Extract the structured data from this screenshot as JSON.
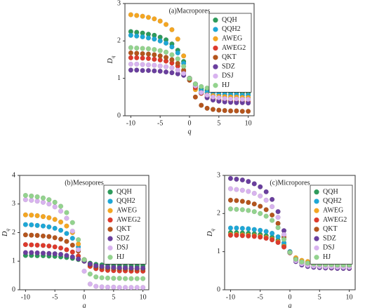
{
  "chart_data": [
    {
      "type": "scatter",
      "title": "(a)Macropores",
      "x_label": "q",
      "y_label": "D",
      "y_label_subscript": "q",
      "x": [
        -10,
        -9,
        -8,
        -7,
        -6,
        -5,
        -4,
        -3,
        -2,
        -1,
        0,
        1,
        2,
        3,
        4,
        5,
        6,
        7,
        8,
        9,
        10
      ],
      "xlim": [
        -11,
        11
      ],
      "xticks": [
        -10,
        -5,
        0,
        5,
        10
      ],
      "ylim": [
        0,
        3
      ],
      "yticks": [
        0,
        1,
        2,
        3
      ],
      "legend": "upper right",
      "series": [
        {
          "name": "QQH",
          "color": "#2e9b5c",
          "values": [
            2.25,
            2.23,
            2.21,
            2.18,
            2.15,
            2.1,
            2.03,
            1.92,
            1.75,
            1.45,
            1.0,
            0.8,
            0.72,
            0.68,
            0.66,
            0.64,
            0.63,
            0.62,
            0.62,
            0.61,
            0.61
          ]
        },
        {
          "name": "QQH2",
          "color": "#1ea7d6",
          "values": [
            2.15,
            2.13,
            2.11,
            2.08,
            2.05,
            2.0,
            1.94,
            1.84,
            1.68,
            1.4,
            1.0,
            0.78,
            0.68,
            0.63,
            0.6,
            0.58,
            0.57,
            0.56,
            0.56,
            0.55,
            0.55
          ]
        },
        {
          "name": "AWEG",
          "color": "#f4a622",
          "values": [
            2.7,
            2.68,
            2.66,
            2.63,
            2.59,
            2.53,
            2.44,
            2.3,
            2.05,
            1.6,
            1.0,
            0.7,
            0.6,
            0.56,
            0.54,
            0.52,
            0.51,
            0.5,
            0.5,
            0.49,
            0.49
          ]
        },
        {
          "name": "AWEG2",
          "color": "#dd3a2c",
          "values": [
            1.55,
            1.55,
            1.54,
            1.53,
            1.51,
            1.49,
            1.46,
            1.41,
            1.33,
            1.2,
            1.0,
            0.75,
            0.6,
            0.5,
            0.45,
            0.42,
            0.4,
            0.39,
            0.38,
            0.38,
            0.37
          ]
        },
        {
          "name": "QKT",
          "color": "#b4551d",
          "values": [
            1.68,
            1.67,
            1.66,
            1.65,
            1.63,
            1.6,
            1.56,
            1.5,
            1.4,
            1.22,
            0.95,
            0.5,
            0.28,
            0.2,
            0.17,
            0.15,
            0.14,
            0.13,
            0.13,
            0.12,
            0.12
          ]
        },
        {
          "name": "SDZ",
          "color": "#6a3f9e",
          "values": [
            1.22,
            1.22,
            1.21,
            1.21,
            1.2,
            1.19,
            1.17,
            1.15,
            1.12,
            1.08,
            1.0,
            0.85,
            0.62,
            0.48,
            0.42,
            0.39,
            0.37,
            0.36,
            0.35,
            0.35,
            0.34
          ]
        },
        {
          "name": "DSJ",
          "color": "#d8b3ef",
          "values": [
            1.38,
            1.38,
            1.37,
            1.36,
            1.35,
            1.33,
            1.31,
            1.28,
            1.22,
            1.13,
            1.0,
            0.8,
            0.62,
            0.55,
            0.5,
            0.48,
            0.46,
            0.45,
            0.45,
            0.44,
            0.44
          ]
        },
        {
          "name": "HJ",
          "color": "#93d38e",
          "values": [
            1.82,
            1.81,
            1.8,
            1.79,
            1.77,
            1.74,
            1.7,
            1.63,
            1.52,
            1.32,
            1.0,
            0.85,
            0.78,
            0.74,
            0.71,
            0.7,
            0.69,
            0.68,
            0.68,
            0.67,
            0.67
          ]
        }
      ]
    },
    {
      "type": "scatter",
      "title": "(b)Mesopores",
      "x_label": "q",
      "y_label": "D",
      "y_label_subscript": "q",
      "x": [
        -10,
        -9,
        -8,
        -7,
        -6,
        -5,
        -4,
        -3,
        -2,
        -1,
        0,
        1,
        2,
        3,
        4,
        5,
        6,
        7,
        8,
        9,
        10
      ],
      "xlim": [
        -11,
        11
      ],
      "xticks": [
        -10,
        -5,
        0,
        5,
        10
      ],
      "ylim": [
        0,
        4
      ],
      "yticks": [
        0,
        1,
        2,
        3,
        4
      ],
      "legend": "upper right",
      "series": [
        {
          "name": "QQH",
          "color": "#2e9b5c",
          "values": [
            1.2,
            1.2,
            1.19,
            1.19,
            1.18,
            1.17,
            1.15,
            1.13,
            1.1,
            1.06,
            1.0,
            0.93,
            0.89,
            0.87,
            0.86,
            0.85,
            0.85,
            0.84,
            0.84,
            0.84,
            0.84
          ]
        },
        {
          "name": "QQH2",
          "color": "#1ea7d6",
          "values": [
            2.28,
            2.27,
            2.25,
            2.23,
            2.2,
            2.15,
            2.08,
            1.97,
            1.8,
            1.5,
            1.05,
            0.85,
            0.79,
            0.77,
            0.75,
            0.74,
            0.74,
            0.73,
            0.73,
            0.73,
            0.73
          ]
        },
        {
          "name": "AWEG",
          "color": "#f4a622",
          "values": [
            2.62,
            2.61,
            2.59,
            2.56,
            2.52,
            2.46,
            2.37,
            2.23,
            2.0,
            1.6,
            1.05,
            0.82,
            0.74,
            0.71,
            0.69,
            0.68,
            0.67,
            0.67,
            0.66,
            0.66,
            0.66
          ]
        },
        {
          "name": "AWEG2",
          "color": "#dd3a2c",
          "values": [
            1.58,
            1.57,
            1.56,
            1.55,
            1.53,
            1.5,
            1.46,
            1.4,
            1.32,
            1.18,
            1.0,
            0.82,
            0.74,
            0.7,
            0.68,
            0.67,
            0.66,
            0.66,
            0.65,
            0.65,
            0.65
          ]
        },
        {
          "name": "QKT",
          "color": "#b4551d",
          "values": [
            1.92,
            1.91,
            1.9,
            1.88,
            1.86,
            1.82,
            1.77,
            1.69,
            1.56,
            1.35,
            1.05,
            0.88,
            0.81,
            0.78,
            0.76,
            0.75,
            0.74,
            0.74,
            0.73,
            0.73,
            0.73
          ]
        },
        {
          "name": "SDZ",
          "color": "#6a3f9e",
          "values": [
            1.3,
            1.3,
            1.29,
            1.28,
            1.27,
            1.26,
            1.24,
            1.2,
            1.15,
            1.08,
            1.0,
            0.9,
            0.84,
            0.81,
            0.79,
            0.78,
            0.77,
            0.77,
            0.76,
            0.76,
            0.76
          ]
        },
        {
          "name": "DSJ",
          "color": "#d8b3ef",
          "values": [
            3.15,
            3.13,
            3.1,
            3.06,
            3.0,
            2.9,
            2.75,
            2.5,
            2.05,
            1.4,
            0.65,
            0.2,
            0.12,
            0.1,
            0.09,
            0.09,
            0.08,
            0.08,
            0.08,
            0.08,
            0.08
          ]
        },
        {
          "name": "HJ",
          "color": "#93d38e",
          "values": [
            3.3,
            3.28,
            3.25,
            3.21,
            3.15,
            3.06,
            2.92,
            2.7,
            2.35,
            1.75,
            1.05,
            0.55,
            0.45,
            0.42,
            0.41,
            0.4,
            0.4,
            0.39,
            0.39,
            0.39,
            0.39
          ]
        }
      ]
    },
    {
      "type": "scatter",
      "title": "(c)Micropores",
      "x_label": "q",
      "y_label": "D",
      "y_label_subscript": "q",
      "x": [
        -10,
        -9,
        -8,
        -7,
        -6,
        -5,
        -4,
        -3,
        -2,
        -1,
        0,
        1,
        2,
        3,
        4,
        5,
        6,
        7,
        8,
        9,
        10
      ],
      "xlim": [
        -11,
        11
      ],
      "xticks": [
        -10,
        -5,
        0,
        5,
        10
      ],
      "ylim": [
        0,
        3
      ],
      "yticks": [
        0,
        1,
        2,
        3
      ],
      "legend": "upper right",
      "series": [
        {
          "name": "QQH",
          "color": "#2e9b5c",
          "values": [
            1.5,
            1.5,
            1.49,
            1.48,
            1.47,
            1.45,
            1.42,
            1.38,
            1.3,
            1.17,
            0.98,
            0.82,
            0.74,
            0.7,
            0.68,
            0.67,
            0.66,
            0.66,
            0.65,
            0.65,
            0.65
          ]
        },
        {
          "name": "QQH2",
          "color": "#1ea7d6",
          "values": [
            1.62,
            1.62,
            1.61,
            1.6,
            1.58,
            1.56,
            1.53,
            1.48,
            1.39,
            1.23,
            1.0,
            0.82,
            0.73,
            0.69,
            0.67,
            0.66,
            0.65,
            0.65,
            0.64,
            0.64,
            0.64
          ]
        },
        {
          "name": "AWEG",
          "color": "#f4a622",
          "values": [
            1.45,
            1.45,
            1.44,
            1.43,
            1.42,
            1.4,
            1.37,
            1.33,
            1.26,
            1.14,
            0.98,
            0.84,
            0.77,
            0.74,
            0.72,
            0.71,
            0.7,
            0.7,
            0.69,
            0.69,
            0.69
          ]
        },
        {
          "name": "AWEG2",
          "color": "#dd3a2c",
          "values": [
            1.43,
            1.43,
            1.42,
            1.41,
            1.4,
            1.38,
            1.35,
            1.31,
            1.24,
            1.12,
            0.97,
            0.8,
            0.7,
            0.64,
            0.61,
            0.59,
            0.58,
            0.57,
            0.57,
            0.57,
            0.56
          ]
        },
        {
          "name": "QKT",
          "color": "#b4551d",
          "values": [
            2.35,
            2.34,
            2.32,
            2.29,
            2.25,
            2.19,
            2.1,
            1.96,
            1.74,
            1.38,
            0.98,
            0.78,
            0.7,
            0.66,
            0.64,
            0.63,
            0.62,
            0.62,
            0.61,
            0.61,
            0.61
          ]
        },
        {
          "name": "SDZ",
          "color": "#6a3f9e",
          "values": [
            2.92,
            2.9,
            2.88,
            2.84,
            2.78,
            2.7,
            2.57,
            2.37,
            2.05,
            1.55,
            0.98,
            0.74,
            0.65,
            0.61,
            0.59,
            0.58,
            0.57,
            0.57,
            0.56,
            0.56,
            0.56
          ]
        },
        {
          "name": "DSJ",
          "color": "#d8b3ef",
          "values": [
            2.65,
            2.63,
            2.61,
            2.58,
            2.53,
            2.46,
            2.35,
            2.18,
            1.9,
            1.45,
            0.98,
            0.76,
            0.68,
            0.64,
            0.62,
            0.61,
            0.6,
            0.6,
            0.59,
            0.59,
            0.59
          ]
        },
        {
          "name": "HJ",
          "color": "#93d38e",
          "values": [
            2.12,
            2.11,
            2.1,
            2.08,
            2.05,
            2.0,
            1.93,
            1.82,
            1.63,
            1.32,
            0.98,
            0.8,
            0.73,
            0.7,
            0.68,
            0.67,
            0.66,
            0.66,
            0.65,
            0.65,
            0.65
          ]
        }
      ]
    }
  ]
}
